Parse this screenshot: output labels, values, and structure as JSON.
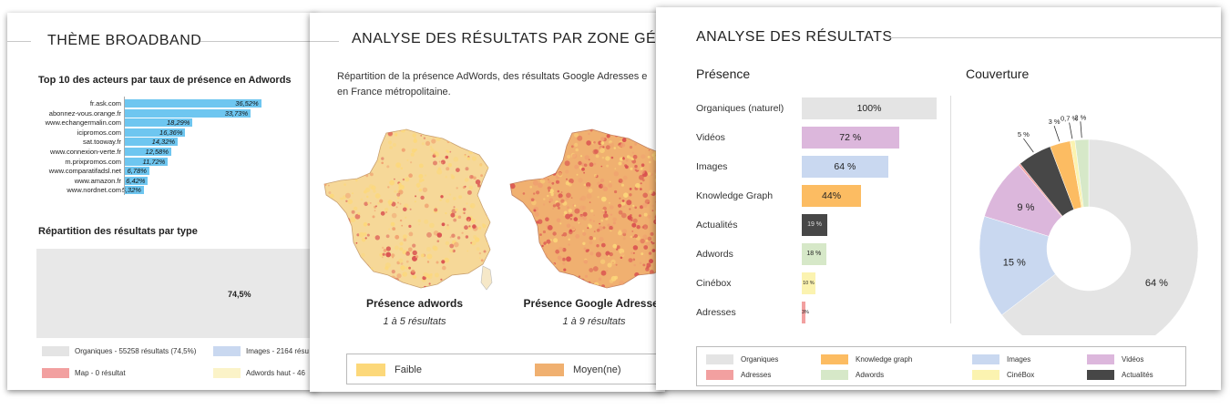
{
  "panel1": {
    "title": "THÈME BROADBAND",
    "chart1_title": "Top 10 des acteurs par taux de présence en Adwords",
    "chart2_title": "Répartition des résultats par type",
    "chart2_value": "74,5%",
    "legend": [
      {
        "label": "Organiques - 55258 résultats (74,5%)",
        "color": "#e4e4e4"
      },
      {
        "label": "Images - 2164 résu",
        "color": "#c9d8f0"
      },
      {
        "label": "Map - 0 résultat",
        "color": "#f2a0a0"
      },
      {
        "label": "Adwords haut - 46",
        "color": "#fbf3c8"
      }
    ]
  },
  "panel2": {
    "title": "ANALYSE DES RÉSULTATS PAR ZONE GÉOG",
    "description": "Répartition de la présence AdWords, des résultats Google Adresses e en France métropolitaine.",
    "map1": {
      "title": "Présence adwords",
      "subtitle": "1 à 5 résultats"
    },
    "map2": {
      "title": "Présence Google Adresses",
      "subtitle": "1 à 9 résultats"
    },
    "legend": [
      {
        "label": "Faible",
        "color": "#fcd87a"
      },
      {
        "label": "Moyen(ne)",
        "color": "#f0b070"
      }
    ],
    "map_colors": {
      "low": "#fcd87a",
      "mid": "#f0a070",
      "high": "#d94f4f"
    }
  },
  "panel3": {
    "title": "ANALYSE DES RÉSULTATS",
    "presence_title": "Présence",
    "coverage_title": "Couverture",
    "legend": [
      {
        "label": "Organiques",
        "color": "#e4e4e4"
      },
      {
        "label": "Knowledge graph",
        "color": "#fcbc62"
      },
      {
        "label": "Images",
        "color": "#c9d8f0"
      },
      {
        "label": "Vidéos",
        "color": "#dcb7dc"
      },
      {
        "label": "Adresses",
        "color": "#f2a0a0"
      },
      {
        "label": "Adwords",
        "color": "#d6e8c8"
      },
      {
        "label": "CinéBox",
        "color": "#fbf3b0"
      },
      {
        "label": "Actualités",
        "color": "#474747"
      }
    ]
  },
  "chart_data": [
    {
      "type": "bar",
      "orientation": "horizontal",
      "title": "Top 10 des acteurs par taux de présence en Adwords",
      "categories": [
        "fr.ask.com",
        "abonnez-vous.orange.fr",
        "www.echangermalin.com",
        "icipromos.com",
        "sat.tooway.fr",
        "www.connexion-verte.fr",
        "m.prixpromos.com",
        "www.comparatifadsl.net",
        "www.amazon.fr",
        "www.nordnet.com"
      ],
      "values": [
        36.52,
        33.73,
        18.29,
        16.36,
        14.32,
        12.58,
        11.72,
        6.78,
        6.42,
        5.32
      ],
      "value_labels": [
        "36,52%",
        "33,73%",
        "18,29%",
        "16,36%",
        "14,32%",
        "12,58%",
        "11,72%",
        "6,78%",
        "6,42%",
        "5,32%"
      ],
      "color": "#6ec6f0",
      "xlim": [
        0,
        40
      ]
    },
    {
      "type": "bar",
      "orientation": "horizontal",
      "title": "Présence",
      "categories": [
        "Organiques (naturel)",
        "Vidéos",
        "Images",
        "Knowledge Graph",
        "Actualités",
        "Adwords",
        "Cinébox",
        "Adresses"
      ],
      "values": [
        100,
        72,
        64,
        44,
        19,
        18,
        10,
        3
      ],
      "value_labels": [
        "100%",
        "72 %",
        "64 %",
        "44%",
        "19 %",
        "18 %",
        "10 %",
        "3%"
      ],
      "colors": [
        "#e4e4e4",
        "#dcb7dc",
        "#c9d8f0",
        "#fcbc62",
        "#474747",
        "#d6e8c8",
        "#fbf3b0",
        "#f2a0a0"
      ],
      "xlim": [
        0,
        100
      ]
    },
    {
      "type": "pie",
      "title": "Couverture",
      "donut": true,
      "labels": [
        "Organiques",
        "Images",
        "Vidéos",
        "Adresses",
        "Actualités",
        "Knowledge graph",
        "CinéBox",
        "Adwords"
      ],
      "values": [
        64,
        15,
        9,
        0.3,
        5,
        3,
        0.7,
        2
      ],
      "value_labels": [
        "64 %",
        "15 %",
        "9 %",
        "",
        "5 %",
        "3 %",
        "0,7 %",
        "2 %"
      ],
      "colors": [
        "#e4e4e4",
        "#c9d8f0",
        "#dcb7dc",
        "#f2a0a0",
        "#474747",
        "#fcbc62",
        "#fbf3b0",
        "#d6e8c8"
      ]
    }
  ]
}
